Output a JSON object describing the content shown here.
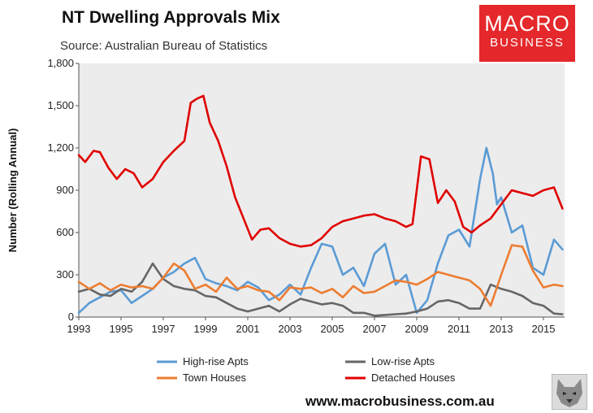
{
  "header": {
    "title": "NT Dwelling Approvals Mix",
    "source": "Source: Australian Bureau of Statistics"
  },
  "logo": {
    "line1": "MACRO",
    "line2": "BUSINESS"
  },
  "footer": {
    "url": "www.macrobusiness.com.au"
  },
  "colors": {
    "high_rise": "#5b9bd5",
    "low_rise": "#666666",
    "town": "#ed7d31",
    "detached": "#e00000",
    "plot_bg": "#ececec",
    "brand": "#e4282b"
  },
  "chart_data": {
    "type": "line",
    "title": "NT Dwelling Approvals Mix",
    "xlabel": "",
    "ylabel": "Number (Rolling Annual)",
    "xlim": [
      1993.0,
      2016.0
    ],
    "ylim": [
      0,
      1800
    ],
    "xticks": [
      "1993",
      "1995",
      "1997",
      "1999",
      "2001",
      "2003",
      "2005",
      "2007",
      "2009",
      "2011",
      "2013",
      "2015"
    ],
    "yticks": [
      "0",
      "300",
      "600",
      "900",
      "1,200",
      "1,500",
      "1,800"
    ],
    "grid": false,
    "legend_position": "bottom",
    "series": [
      {
        "name": "High-rise Apts",
        "color": "#5b9bd5",
        "x": [
          1993.0,
          1993.5,
          1994.0,
          1994.5,
          1995.0,
          1995.5,
          1996.0,
          1996.5,
          1997.0,
          1997.5,
          1998.0,
          1998.5,
          1999.0,
          1999.5,
          2000.0,
          2000.5,
          2001.0,
          2001.5,
          2002.0,
          2002.5,
          2003.0,
          2003.5,
          2004.0,
          2004.5,
          2005.0,
          2005.5,
          2006.0,
          2006.5,
          2007.0,
          2007.5,
          2008.0,
          2008.5,
          2009.0,
          2009.5,
          2010.0,
          2010.5,
          2011.0,
          2011.5,
          2012.0,
          2012.3,
          2012.6,
          2012.8,
          2013.0,
          2013.5,
          2014.0,
          2014.5,
          2015.0,
          2015.5,
          2015.9
        ],
        "y": [
          30,
          100,
          140,
          180,
          190,
          100,
          150,
          200,
          280,
          320,
          380,
          420,
          270,
          240,
          220,
          190,
          250,
          210,
          120,
          160,
          230,
          160,
          350,
          520,
          500,
          300,
          350,
          220,
          450,
          520,
          230,
          300,
          30,
          120,
          380,
          580,
          620,
          500,
          980,
          1200,
          1020,
          800,
          850,
          600,
          650,
          350,
          300,
          550,
          480
        ]
      },
      {
        "name": "Low-rise Apts",
        "color": "#666666",
        "x": [
          1993.0,
          1993.5,
          1994.0,
          1994.5,
          1995.0,
          1995.5,
          1996.0,
          1996.5,
          1997.0,
          1997.5,
          1998.0,
          1998.5,
          1999.0,
          1999.5,
          2000.0,
          2000.5,
          2001.0,
          2001.5,
          2002.0,
          2002.5,
          2003.0,
          2003.5,
          2004.0,
          2004.5,
          2005.0,
          2005.5,
          2006.0,
          2006.5,
          2007.0,
          2007.5,
          2008.0,
          2008.5,
          2009.0,
          2009.5,
          2010.0,
          2010.5,
          2011.0,
          2011.5,
          2012.0,
          2012.5,
          2013.0,
          2013.5,
          2014.0,
          2014.5,
          2015.0,
          2015.5,
          2015.9
        ],
        "y": [
          180,
          200,
          160,
          150,
          200,
          180,
          250,
          380,
          270,
          220,
          200,
          190,
          150,
          140,
          100,
          60,
          40,
          60,
          80,
          40,
          90,
          130,
          110,
          90,
          100,
          80,
          30,
          30,
          10,
          15,
          20,
          25,
          40,
          60,
          110,
          120,
          100,
          60,
          60,
          230,
          200,
          180,
          150,
          100,
          80,
          25,
          20
        ]
      },
      {
        "name": "Town Houses",
        "color": "#ed7d31",
        "x": [
          1993.0,
          1993.5,
          1994.0,
          1994.5,
          1995.0,
          1995.5,
          1996.0,
          1996.5,
          1997.0,
          1997.5,
          1998.0,
          1998.5,
          1999.0,
          1999.5,
          2000.0,
          2000.5,
          2001.0,
          2001.5,
          2002.0,
          2002.5,
          2003.0,
          2003.5,
          2004.0,
          2004.5,
          2005.0,
          2005.5,
          2006.0,
          2006.5,
          2007.0,
          2007.5,
          2008.0,
          2008.5,
          2009.0,
          2009.5,
          2010.0,
          2010.5,
          2011.0,
          2011.5,
          2012.0,
          2012.5,
          2013.0,
          2013.5,
          2014.0,
          2014.5,
          2015.0,
          2015.5,
          2015.9
        ],
        "y": [
          250,
          200,
          240,
          190,
          230,
          210,
          220,
          200,
          280,
          380,
          330,
          200,
          230,
          180,
          280,
          200,
          220,
          190,
          180,
          120,
          210,
          200,
          210,
          170,
          200,
          140,
          220,
          170,
          180,
          220,
          260,
          250,
          230,
          270,
          320,
          300,
          280,
          260,
          200,
          80,
          300,
          510,
          500,
          330,
          210,
          230,
          220
        ]
      },
      {
        "name": "Detached Houses",
        "color": "#e00000",
        "x": [
          1993.0,
          1993.3,
          1993.7,
          1994.0,
          1994.4,
          1994.8,
          1995.2,
          1995.6,
          1996.0,
          1996.5,
          1997.0,
          1997.5,
          1998.0,
          1998.3,
          1998.6,
          1998.9,
          1999.2,
          1999.6,
          2000.0,
          2000.4,
          2000.8,
          2001.2,
          2001.6,
          2002.0,
          2002.5,
          2003.0,
          2003.5,
          2004.0,
          2004.5,
          2005.0,
          2005.5,
          2006.0,
          2006.5,
          2007.0,
          2007.5,
          2008.0,
          2008.5,
          2008.8,
          2009.2,
          2009.6,
          2010.0,
          2010.4,
          2010.8,
          2011.2,
          2011.6,
          2012.0,
          2012.5,
          2013.0,
          2013.5,
          2014.0,
          2014.5,
          2015.0,
          2015.5,
          2015.9
        ],
        "y": [
          1150,
          1100,
          1180,
          1170,
          1060,
          980,
          1050,
          1020,
          920,
          980,
          1100,
          1180,
          1250,
          1520,
          1550,
          1570,
          1380,
          1250,
          1070,
          850,
          700,
          550,
          620,
          630,
          560,
          520,
          500,
          510,
          560,
          640,
          680,
          700,
          720,
          730,
          700,
          680,
          640,
          660,
          1140,
          1120,
          810,
          900,
          820,
          640,
          600,
          650,
          700,
          800,
          900,
          880,
          860,
          900,
          920,
          770
        ]
      }
    ]
  }
}
